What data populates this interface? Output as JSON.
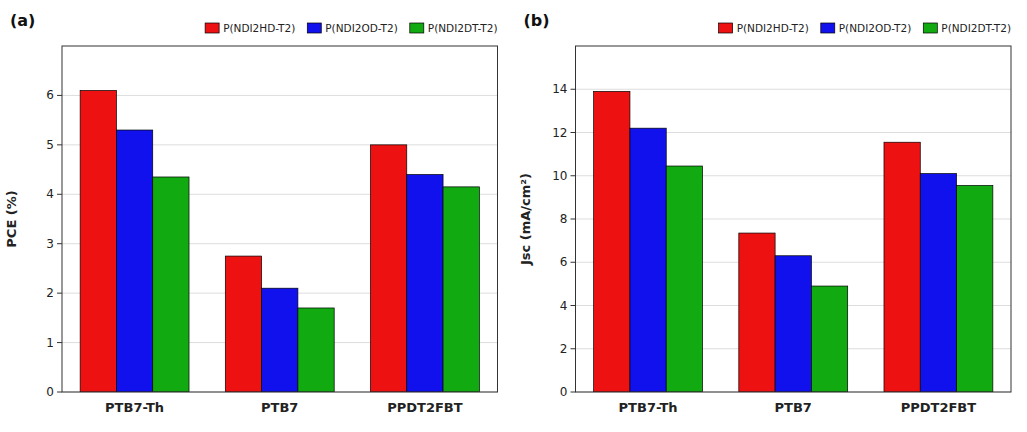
{
  "chart_data": [
    {
      "type": "bar",
      "title": "(a)",
      "ylabel": "PCE (%)",
      "categories": [
        "PTB7-Th",
        "PTB7",
        "PPDT2FBT"
      ],
      "series": [
        {
          "name": "P(NDI2HD-T2)",
          "color": "#ee1111",
          "values": [
            6.1,
            2.75,
            5.0
          ]
        },
        {
          "name": "P(NDI2OD-T2)",
          "color": "#1111ee",
          "values": [
            5.3,
            2.1,
            4.4
          ]
        },
        {
          "name": "P(NDI2DT-T2)",
          "color": "#11aa11",
          "values": [
            4.35,
            1.7,
            4.15
          ]
        }
      ],
      "ylim": [
        0,
        7
      ],
      "yticks": [
        0,
        1,
        2,
        3,
        4,
        5,
        6
      ],
      "grid": true,
      "legend": "upper right"
    },
    {
      "type": "bar",
      "title": "(b)",
      "ylabel": "Jsc (mA/cm²)",
      "categories": [
        "PTB7-Th",
        "PTB7",
        "PPDT2FBT"
      ],
      "series": [
        {
          "name": "P(NDI2HD-T2)",
          "color": "#ee1111",
          "values": [
            13.9,
            7.35,
            11.55
          ]
        },
        {
          "name": "P(NDI2OD-T2)",
          "color": "#1111ee",
          "values": [
            12.2,
            6.3,
            10.1
          ]
        },
        {
          "name": "P(NDI2DT-T2)",
          "color": "#11aa11",
          "values": [
            10.45,
            4.9,
            9.55
          ]
        }
      ],
      "ylim": [
        0,
        16
      ],
      "yticks": [
        0,
        2,
        4,
        6,
        8,
        10,
        12,
        14
      ],
      "grid": true,
      "legend": "upper right"
    }
  ]
}
